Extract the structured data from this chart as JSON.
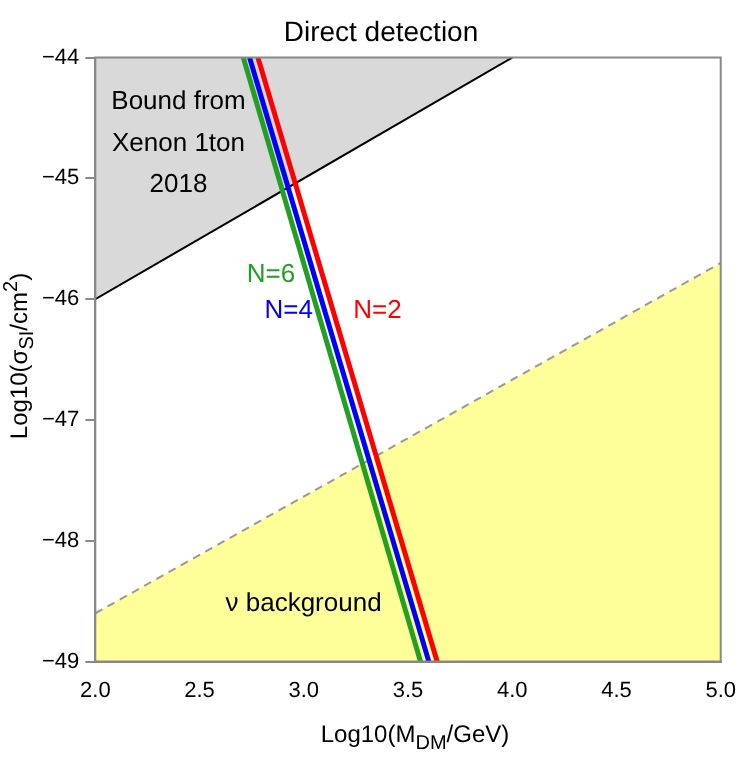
{
  "chart_data": {
    "type": "line",
    "title": "Direct detection",
    "xlabel": "Log10(M$_{DM}$/GeV)",
    "ylabel": "Log10(σ$_{SI}$/cm$^{2}$)",
    "xlim": [
      2,
      5
    ],
    "ylim": [
      -49,
      -44
    ],
    "xticks": [
      {
        "value": 2,
        "label": "2.0"
      },
      {
        "value": 2.5,
        "label": "2.5"
      },
      {
        "value": 3,
        "label": "3.0"
      },
      {
        "value": 3.5,
        "label": "3.5"
      },
      {
        "value": 4,
        "label": "4.0"
      },
      {
        "value": 4.5,
        "label": "4.5"
      },
      {
        "value": 5,
        "label": "5.0"
      }
    ],
    "yticks": [
      {
        "value": -49,
        "label": "−49"
      },
      {
        "value": -48,
        "label": "−48"
      },
      {
        "value": -47,
        "label": "−47"
      },
      {
        "value": -46,
        "label": "−46"
      },
      {
        "value": -45,
        "label": "−45"
      },
      {
        "value": -44,
        "label": "−44"
      }
    ],
    "grid": false,
    "legend": false,
    "marker": "none",
    "series": [
      {
        "type": "area",
        "color": "#ffff99",
        "x": [
          2,
          5
        ],
        "values": [
          -49,
          -49
        ]
      },
      {
        "color": "#999999",
        "line_style": "dashed",
        "x": [
          2,
          5
        ],
        "values": [
          -48.6,
          -45.7
        ]
      },
      {
        "name": "N=6",
        "color": "#22a022",
        "x": [
          2.71,
          3.56
        ],
        "values": [
          -44,
          -49
        ]
      },
      {
        "name": "N=4",
        "color": "#0000ff",
        "x": [
          2.74,
          3.6
        ],
        "values": [
          -44,
          -49
        ]
      },
      {
        "name": "N=2",
        "color": "#ff0000",
        "x": [
          2.78,
          3.64
        ],
        "values": [
          -44,
          -49
        ]
      },
      {
        "type": "area",
        "color": "#000000",
        "x": [
          2,
          4
        ],
        "values": [
          -46,
          -44
        ]
      }
    ],
    "annotations": [
      "Bound from",
      "Xenon 1ton",
      "2018",
      "ν background"
    ]
  }
}
